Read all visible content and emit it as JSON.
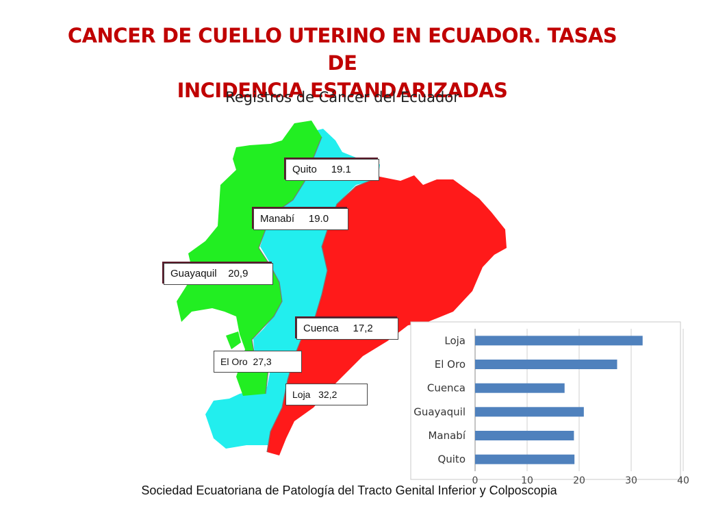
{
  "title_line1": "CANCER DE CUELLO UTERINO EN ECUADOR. TASAS DE",
  "title_line2": "INCIDENCIA ESTANDARIZADAS",
  "subtitle": "Registros de Cáncer del Ecuador",
  "map_labels": {
    "quito": "Quito     19.1",
    "manabi": "Manabí     19.0",
    "guayaquil": "Guayaquil    20,9",
    "cuenca": "Cuenca     17,2",
    "el_oro": "El Oro  27,3",
    "loja": "Loja   32,2"
  },
  "colors": {
    "region_green": "#22ee22",
    "region_cyan": "#22eeee",
    "region_red": "#ff1a1a",
    "bar": "#4f81bd",
    "title": "#c00000"
  },
  "chart_data": {
    "type": "bar",
    "orientation": "horizontal",
    "categories": [
      "Loja",
      "El Oro",
      "Cuenca",
      "Guayaquil",
      "Manabí",
      "Quito"
    ],
    "values": [
      32.2,
      27.3,
      17.2,
      20.9,
      19.0,
      19.1
    ],
    "xlim": [
      0,
      40
    ],
    "xticks": [
      "0",
      "10",
      "20",
      "30",
      "40"
    ],
    "grid": "vertical"
  },
  "footer": "Sociedad Ecuatoriana de Patología del Tracto Genital Inferior y Colposcopia"
}
